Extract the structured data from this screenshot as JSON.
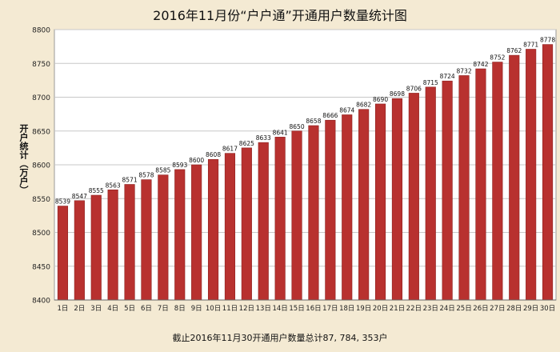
{
  "chart_data": {
    "type": "bar",
    "title": "2016年11月份“户户通”开通用户数量统计图",
    "ylabel": "开户统计（万户）",
    "xlabel": "",
    "caption": "截止2016年11月30开通用户数量总计87, 784, 353户",
    "ylim": [
      8400,
      8800
    ],
    "yticks": [
      8400,
      8450,
      8500,
      8550,
      8600,
      8650,
      8700,
      8750,
      8800
    ],
    "grid": true,
    "categories": [
      "1日",
      "2日",
      "3日",
      "4日",
      "5日",
      "6日",
      "7日",
      "8日",
      "9日",
      "10日",
      "11日",
      "12日",
      "13日",
      "14日",
      "15日",
      "16日",
      "17日",
      "18日",
      "19日",
      "20日",
      "21日",
      "22日",
      "23日",
      "24日",
      "25日",
      "26日",
      "27日",
      "28日",
      "29日",
      "30日"
    ],
    "values": [
      8539,
      8547,
      8555,
      8563,
      8571,
      8578,
      8585,
      8593,
      8600,
      8608,
      8617,
      8625,
      8633,
      8641,
      8650,
      8658,
      8666,
      8674,
      8682,
      8690,
      8698,
      8706,
      8715,
      8724,
      8732,
      8742,
      8752,
      8762,
      8771,
      8778
    ]
  },
  "colors": {
    "bar": "#b8312f",
    "bar_edge": "#8e2321",
    "plot_background": "#ffffff",
    "page_background": "#f4ead3",
    "grid": "#c8c8c8"
  }
}
